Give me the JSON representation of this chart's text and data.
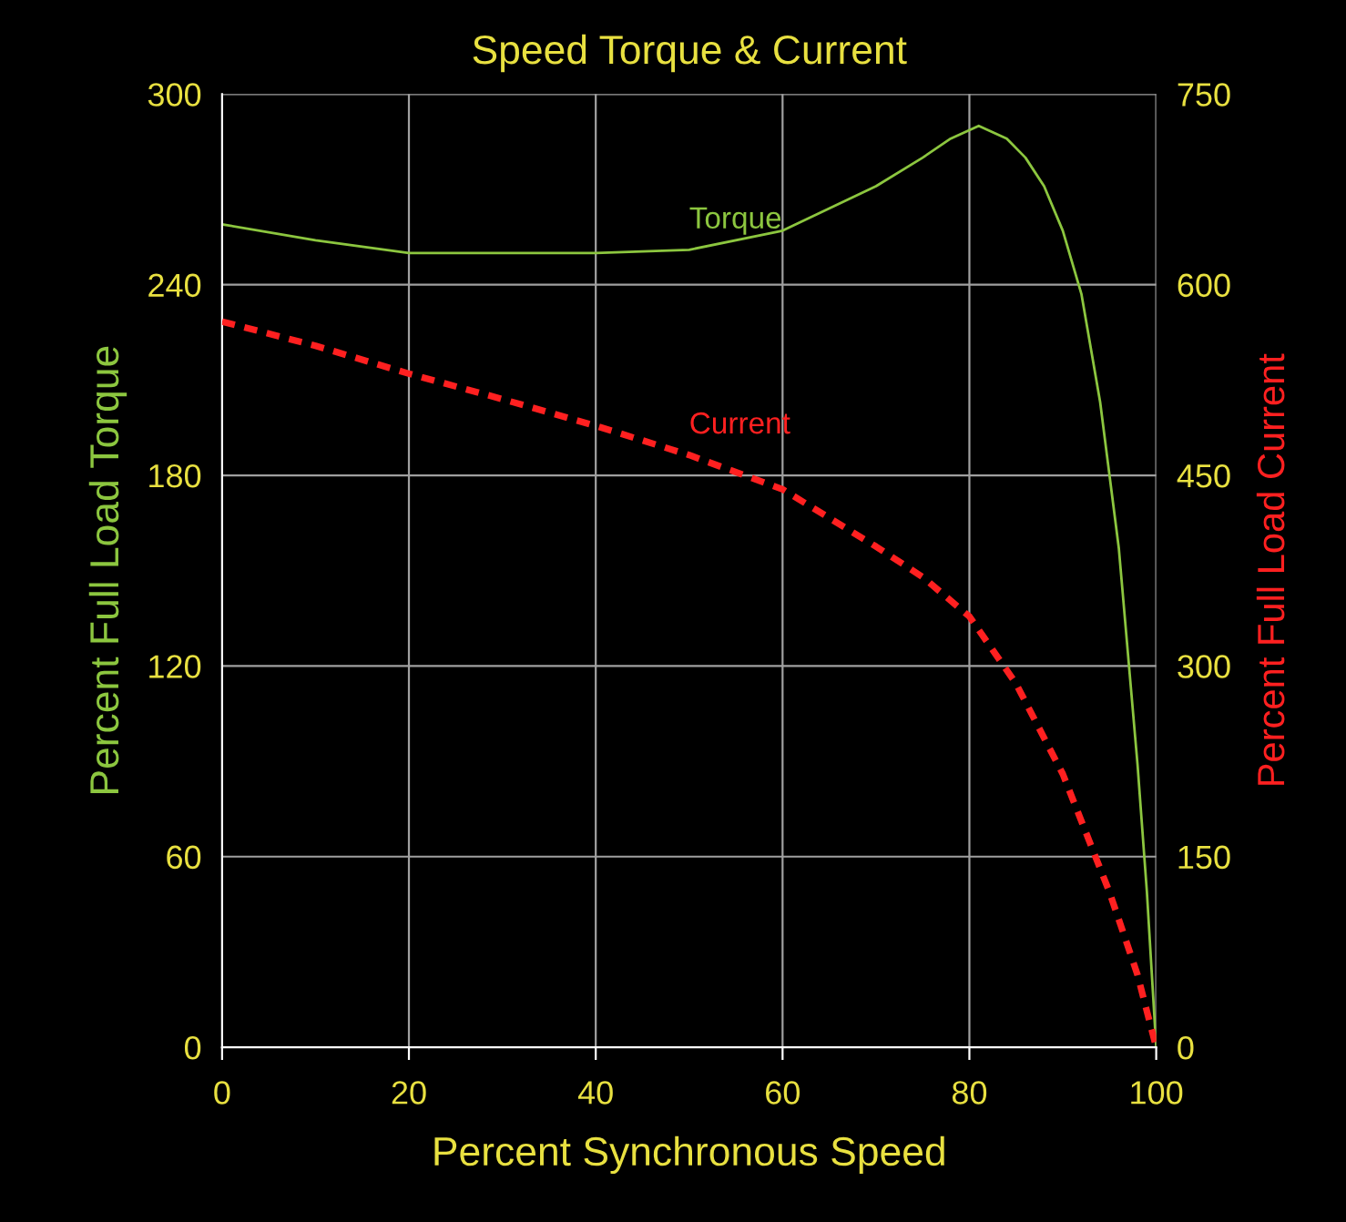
{
  "chart_data": {
    "type": "line",
    "title": "Speed Torque & Current",
    "xlabel": "Percent Synchronous Speed",
    "ylabel": "Percent Full Load Torque",
    "y2label": "Percent Full Load Current",
    "series": [
      {
        "name": "Torque",
        "color": "#8cc63f",
        "line_style": "solid",
        "x": [
          0,
          10,
          20,
          30,
          40,
          50,
          60,
          70,
          75,
          78,
          81,
          84,
          86,
          88,
          90,
          92,
          94,
          96,
          98,
          99,
          100
        ],
        "values": [
          259,
          254,
          250,
          250,
          250,
          251,
          257,
          271,
          280,
          286,
          290,
          286,
          280,
          271,
          257,
          237,
          203,
          157,
          89,
          49,
          0
        ]
      },
      {
        "name": "Current",
        "color": "#ff2020",
        "line_style": "dashed",
        "axis": "y2",
        "x": [
          0,
          10,
          20,
          30,
          40,
          50,
          60,
          70,
          75,
          80,
          85,
          90,
          95,
          98,
          100
        ],
        "values": [
          571,
          552,
          530,
          510,
          489,
          466,
          439,
          394,
          370,
          339,
          286,
          215,
          122,
          57,
          0
        ]
      }
    ],
    "xlim": [
      0,
      100
    ],
    "xticks": [
      0,
      20,
      40,
      60,
      80,
      100
    ],
    "ylim": [
      0,
      300
    ],
    "yticks": [
      0,
      60,
      120,
      180,
      240,
      300
    ],
    "y2lim": [
      0,
      750
    ],
    "y2ticks": [
      0,
      150,
      300,
      450,
      600,
      750
    ],
    "grid": true,
    "legend": false
  }
}
